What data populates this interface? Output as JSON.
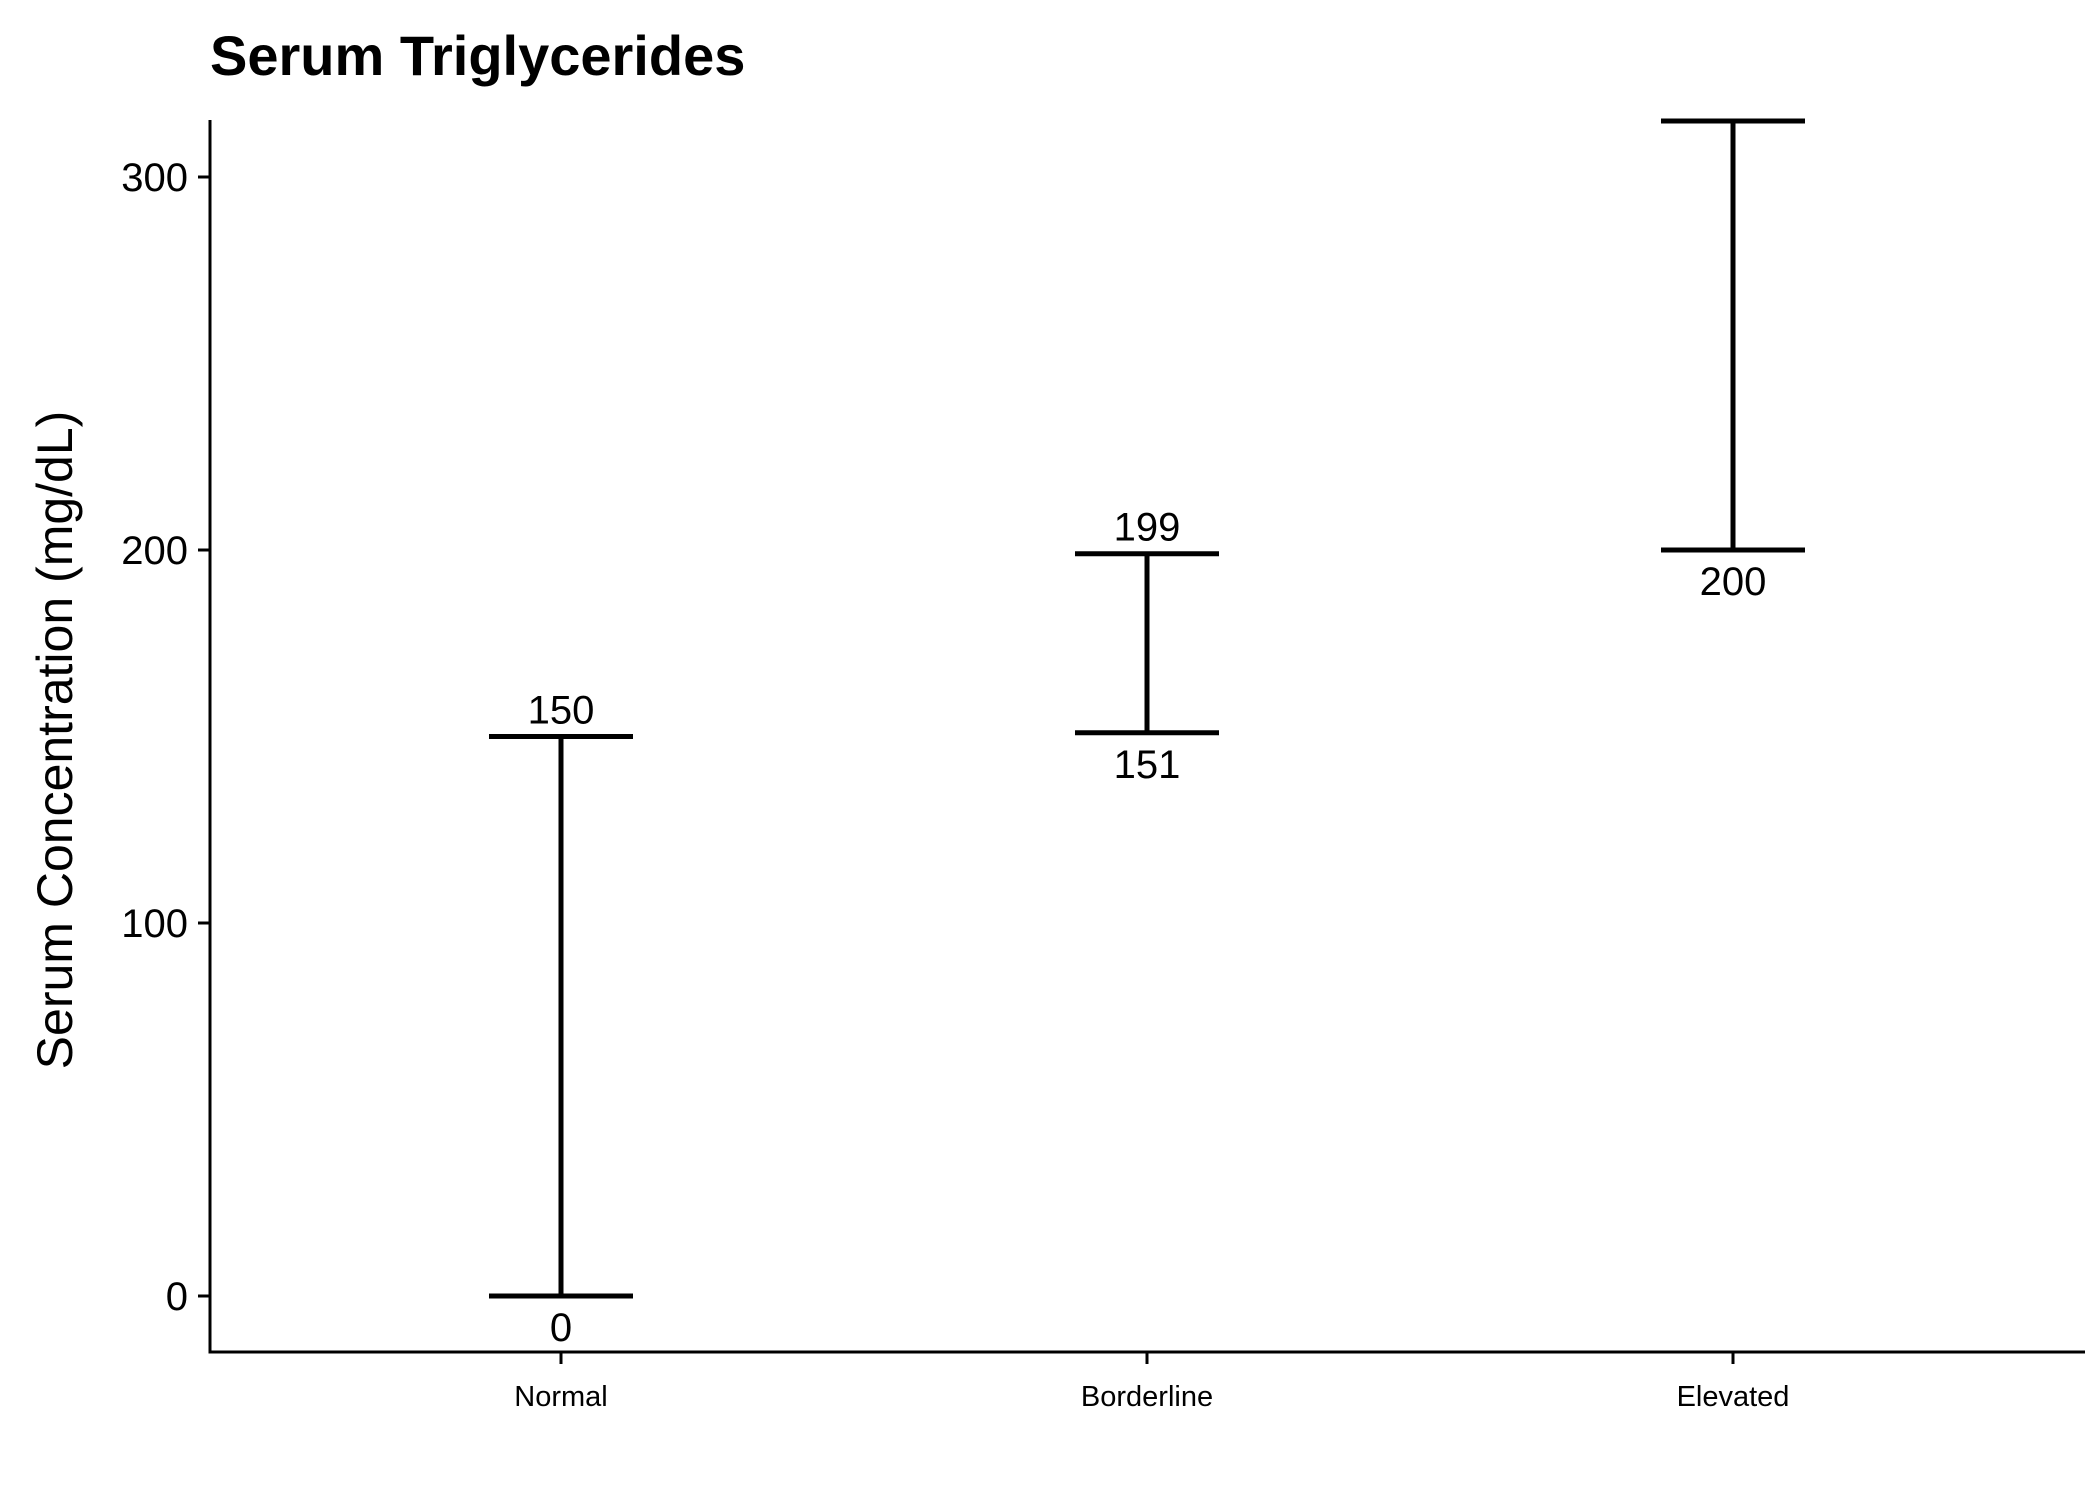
{
  "chart_data": {
    "type": "errorbar",
    "title": "Serum Triglycerides",
    "xlabel": "",
    "ylabel": "Serum Concentration (mg/dL)",
    "ylim": [
      -15,
      315
    ],
    "yticks": [
      0,
      100,
      200,
      300
    ],
    "ytick_labels": [
      "0",
      "100",
      "200",
      "300"
    ],
    "categories": [
      "Normal",
      "Borderline",
      "Elevated"
    ],
    "ranges": [
      {
        "category": "Normal",
        "low": 0,
        "high": 150,
        "low_label": "0",
        "high_label": "150"
      },
      {
        "category": "Borderline",
        "low": 151,
        "high": 199,
        "low_label": "151",
        "high_label": "199"
      },
      {
        "category": "Elevated",
        "low": 200,
        "high": 315,
        "low_label": "200",
        "high_label": ""
      }
    ],
    "grid": false,
    "legend": "none",
    "colors": {
      "line": "#000000",
      "background": "#ffffff"
    }
  }
}
